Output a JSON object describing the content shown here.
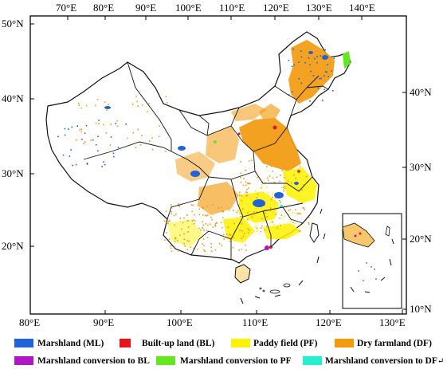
{
  "map": {
    "top_lon_ticks": [
      "70°E",
      "80°E",
      "90°E",
      "100°E",
      "110°E",
      "120°E",
      "130°E",
      "140°E"
    ],
    "bottom_lon_ticks": [
      "80°E",
      "90°E",
      "100°E",
      "110°E",
      "120°E",
      "130°E"
    ],
    "left_lat_ticks": [
      "50°N",
      "40°N",
      "30°N",
      "20°N"
    ],
    "right_lat_ticks": [
      "40°N",
      "30°N",
      "20°N",
      "10°N"
    ]
  },
  "legend": {
    "items": [
      {
        "label": "Marshland (ML)",
        "color": "#1f63d6"
      },
      {
        "label": "Built-up land (BL)",
        "color": "#e8141b"
      },
      {
        "label": "Paddy field (PF)",
        "color": "#fff200"
      },
      {
        "label": "Dry farmland (DF)",
        "color": "#f39a0f"
      },
      {
        "label": "Marshland conversion to BL",
        "color": "#b016c8"
      },
      {
        "label": "Marshland conversion to PF",
        "color": "#62e81f"
      },
      {
        "label": "Marshland conversion to DF",
        "color": "#22f0cf"
      }
    ],
    "trailing_mark": "↵"
  },
  "colors": {
    "marshland": "#1f63d6",
    "built_up": "#e8141b",
    "paddy": "#fff200",
    "dry_farmland": "#f39a0f",
    "conv_bl": "#b016c8",
    "conv_pf": "#62e81f",
    "conv_df": "#22f0cf",
    "frame": "#000000",
    "boundary": "#111111"
  }
}
